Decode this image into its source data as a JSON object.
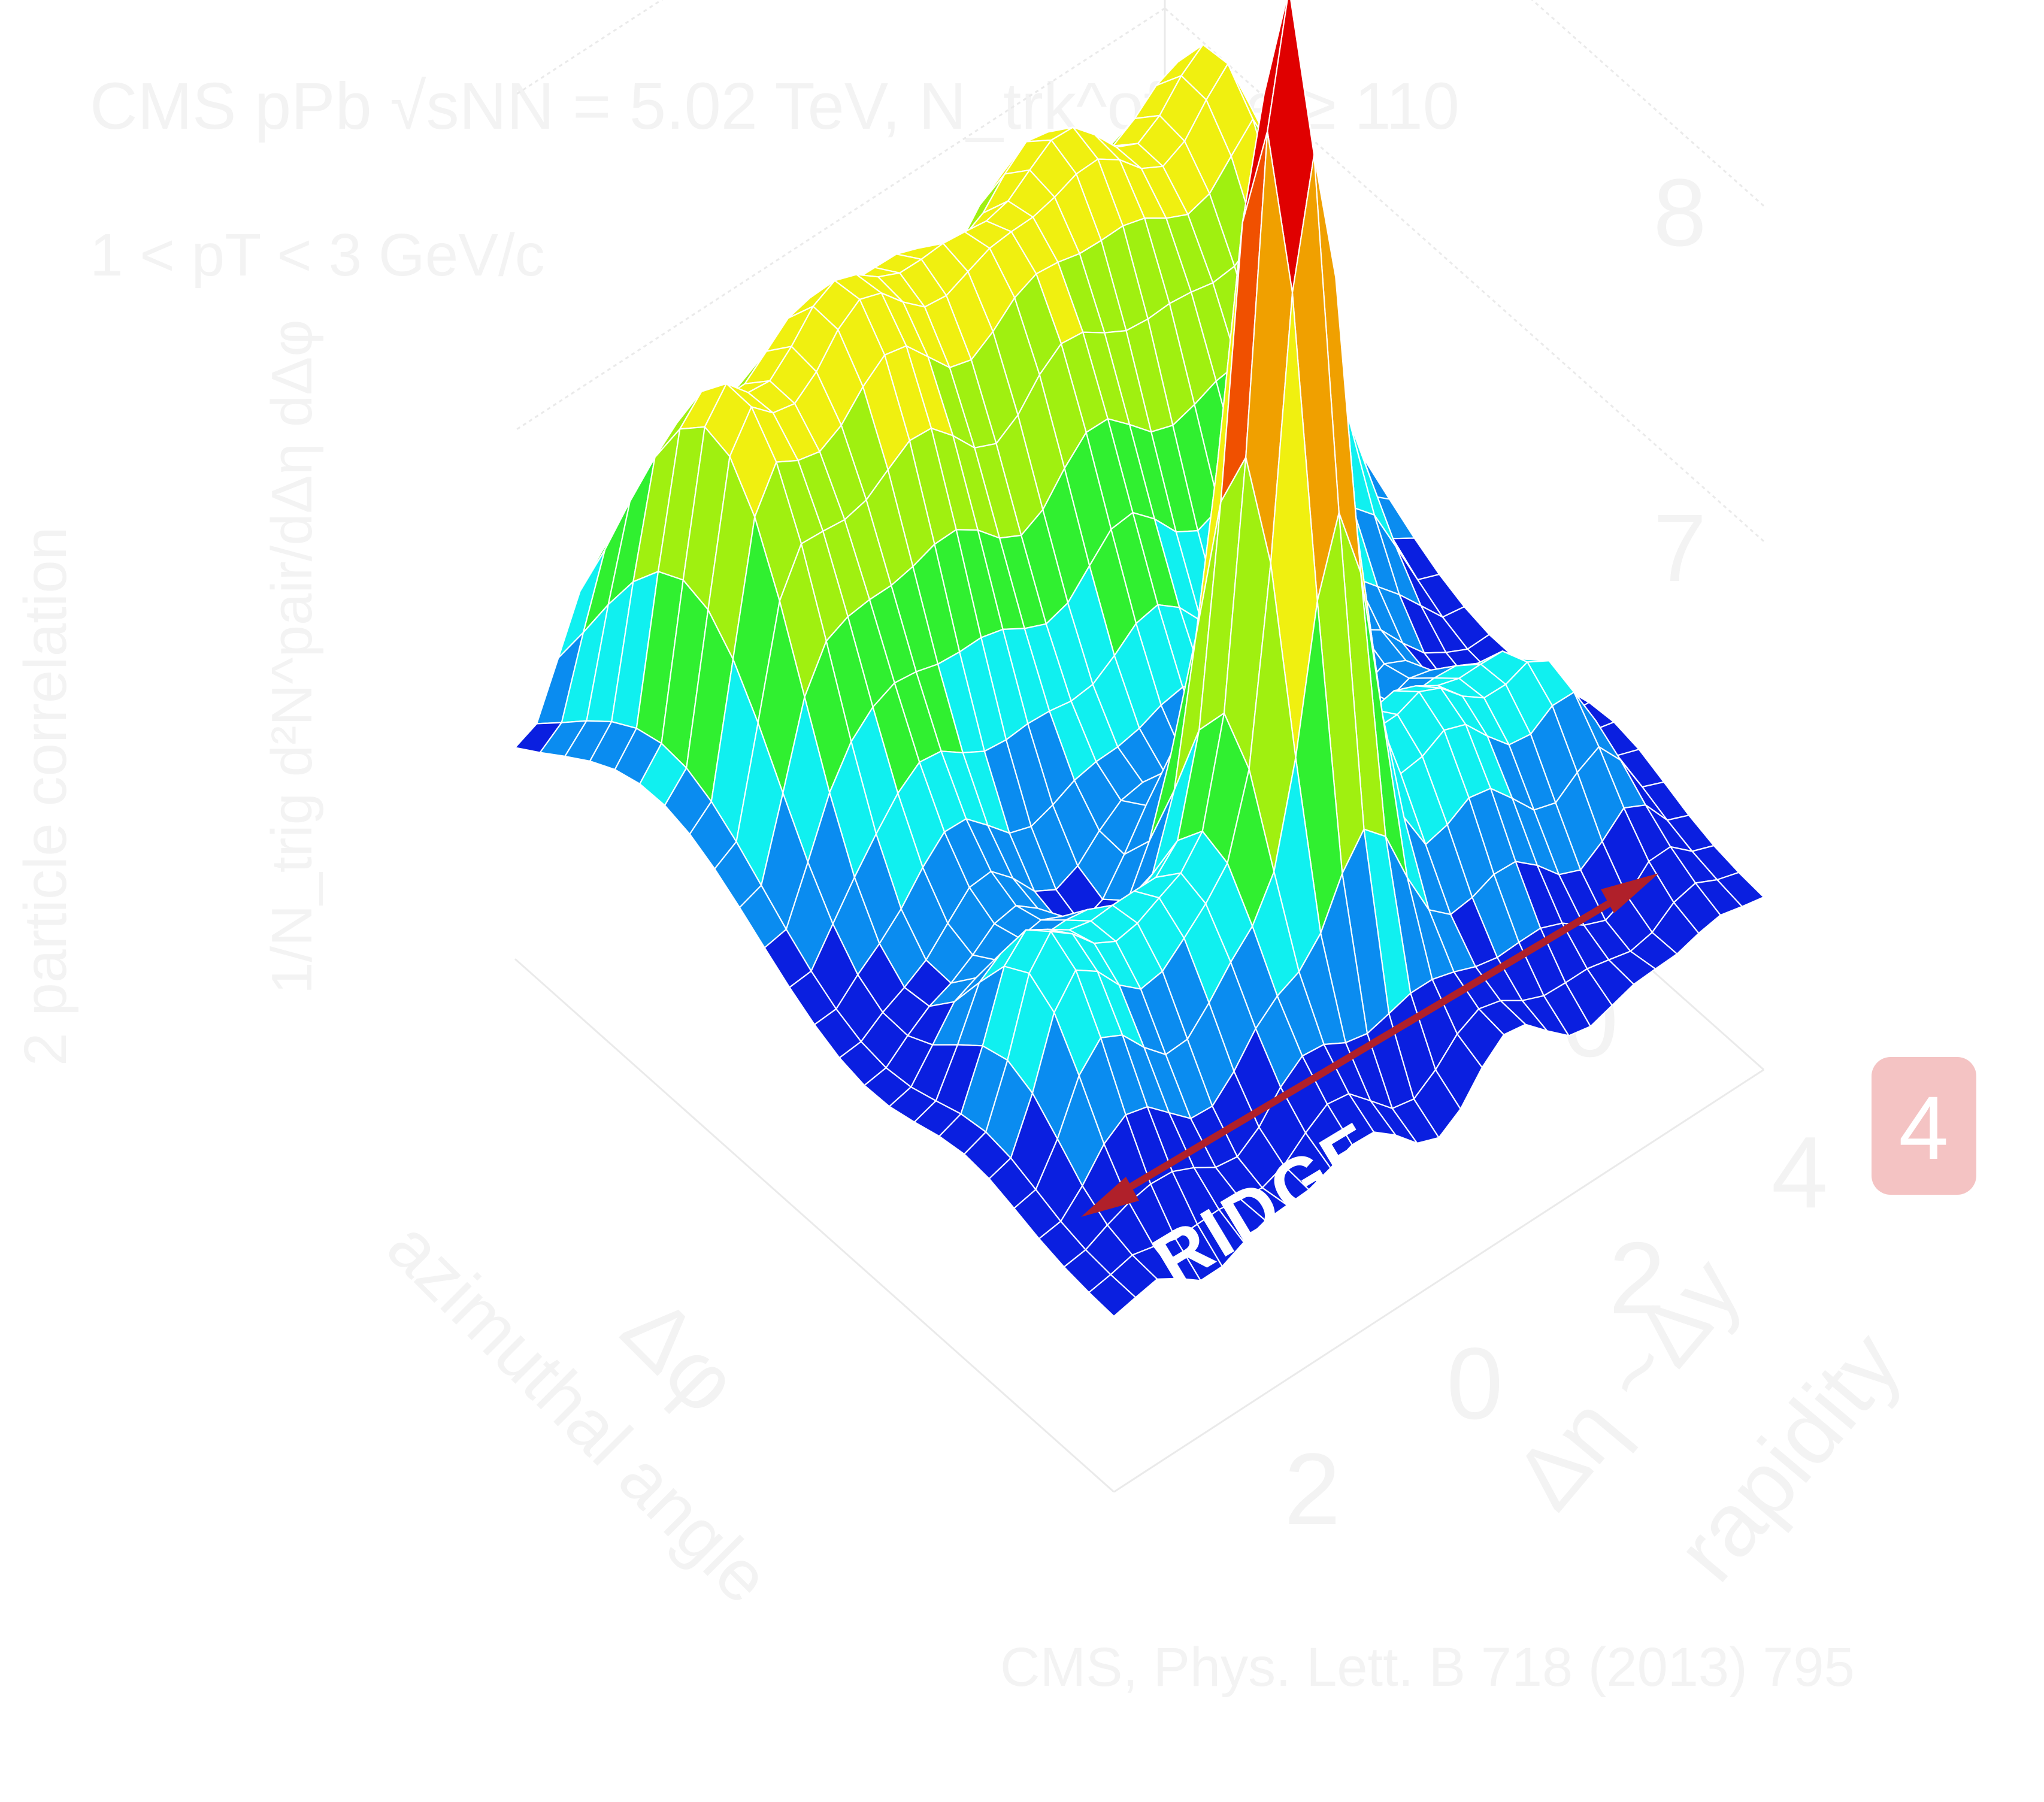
{
  "chart_data": {
    "type": "surface-3d",
    "title": "CMS pPb √sNN = 5.02 TeV, N_trk^offline ≥ 110",
    "subtitle": "1 < pT < 3 GeV/c",
    "zlabel": "1/N_trig d²N^pair/dΔη dΔφ",
    "zlabel_top": "2 particle correlation",
    "xlabel": "Δη ~Δy",
    "xlabel_desc": "rapidity",
    "ylabel": "Δφ",
    "ylabel_desc": "azimuthal angle",
    "x_range": [
      -4,
      4
    ],
    "y_range": [
      -1.5,
      4.5
    ],
    "z_range": [
      6,
      8
    ],
    "x_ticks": [
      "4",
      "2",
      "0",
      "2"
    ],
    "y_ticks": [
      "0",
      "2",
      "4"
    ],
    "z_ticks": [
      "6",
      "7",
      "8"
    ],
    "features": {
      "near_side_peak": {
        "delta_eta": 0,
        "delta_phi": 0,
        "height": 8.9
      },
      "near_side_ridge_level": 6.45,
      "away_side_ridge_level": 7.35,
      "baseline": 5.95
    },
    "annotation": "RIDGE",
    "colors": [
      "#0a1fe0",
      "#0a8cf0",
      "#10f0f0",
      "#30f030",
      "#a0f010",
      "#f0f010",
      "#f0a000",
      "#f05000",
      "#e00000"
    ]
  },
  "badge": {
    "label": "4",
    "color": "#f4c3c3"
  },
  "citation": "CMS, Phys. Lett. B 718 (2013) 795",
  "annotation_color": "#b0202a"
}
